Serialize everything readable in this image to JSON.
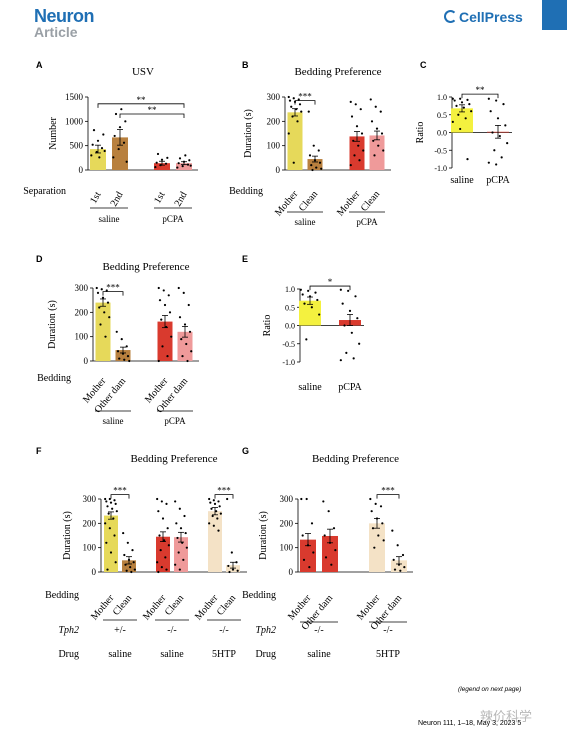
{
  "header": {
    "journal": "Neuron",
    "article_type": "Article",
    "publisher": "CellPress"
  },
  "footer": {
    "legend_note": "(legend on next page)",
    "citation": "Neuron 111, 1–18, May 3, 2023   5",
    "watermark": "辣价科学"
  },
  "colors": {
    "saline": "#e6d95a",
    "saline_dark": "#b8803e",
    "pcpa": "#d93a2e",
    "pcpa_light": "#ef9a9a",
    "htp": "#f4e2c6",
    "bright_yellow": "#f4f13f",
    "header_blue": "#1f6fb4"
  },
  "chart_data": [
    {
      "panel": "A",
      "type": "bar",
      "title": "USV",
      "ylabel": "Number",
      "ylim": [
        0,
        1500
      ],
      "yticks": [
        0,
        500,
        1000,
        1500
      ],
      "xrow_label": "Separation",
      "categories": [
        "1st",
        "2nd",
        "1st",
        "2nd"
      ],
      "groups": [
        {
          "label": "saline",
          "span": [
            0,
            1
          ]
        },
        {
          "label": "pCPA",
          "span": [
            2,
            3
          ]
        }
      ],
      "values": [
        430,
        670,
        140,
        140
      ],
      "errors": [
        80,
        160,
        40,
        30
      ],
      "colors": [
        "#e6d95a",
        "#b8803e",
        "#d93a2e",
        "#ef9a9a"
      ],
      "points": [
        [
          300,
          370,
          450,
          520,
          600,
          730,
          820,
          260,
          390
        ],
        [
          260,
          430,
          560,
          700,
          880,
          1000,
          1150,
          1250,
          170
        ],
        [
          60,
          100,
          130,
          150,
          210,
          250,
          330
        ],
        [
          50,
          80,
          110,
          140,
          170,
          200,
          240,
          300,
          90
        ]
      ],
      "sig": [
        {
          "from": 0,
          "to": 3,
          "label": "**",
          "y": 1360
        },
        {
          "from": 1,
          "to": 3,
          "label": "**",
          "y": 1150
        }
      ]
    },
    {
      "panel": "B",
      "type": "bar",
      "title": "Bedding Preference",
      "ylabel": "Duration (s)",
      "ylim": [
        0,
        300
      ],
      "yticks": [
        0,
        100,
        200,
        300
      ],
      "xrow_label": "Bedding",
      "categories": [
        "Mother",
        "Clean",
        "Mother",
        "Clean"
      ],
      "groups": [
        {
          "label": "saline",
          "span": [
            0,
            1
          ]
        },
        {
          "label": "pCPA",
          "span": [
            2,
            3
          ]
        }
      ],
      "values": [
        237,
        45,
        138,
        142
      ],
      "errors": [
        15,
        12,
        20,
        18
      ],
      "colors": [
        "#e6d95a",
        "#b8803e",
        "#d93a2e",
        "#ef9a9a"
      ],
      "points": [
        [
          300,
          295,
          290,
          285,
          280,
          270,
          260,
          250,
          240,
          220,
          200,
          150,
          30
        ],
        [
          240,
          100,
          80,
          60,
          40,
          30,
          20,
          10,
          5,
          0
        ],
        [
          280,
          270,
          250,
          220,
          180,
          150,
          120,
          100,
          80,
          60,
          40,
          20
        ],
        [
          290,
          260,
          240,
          200,
          170,
          150,
          120,
          100,
          80,
          60
        ]
      ],
      "sig": [
        {
          "from": 0,
          "to": 1,
          "label": "***",
          "y": 285
        }
      ]
    },
    {
      "panel": "C",
      "type": "bar",
      "title": "",
      "ylabel": "Ratio",
      "ylim": [
        -1,
        1
      ],
      "yticks": [
        -1.0,
        -0.5,
        0.0,
        0.5,
        1.0
      ],
      "xrow_label": "",
      "categories": [
        "saline",
        "pCPA"
      ],
      "groups": [],
      "values": [
        0.68,
        0.02
      ],
      "errors": [
        0.1,
        0.18
      ],
      "colors": [
        "#f4f13f",
        "#d93a2e"
      ],
      "points": [
        [
          0.95,
          0.95,
          0.92,
          0.9,
          0.85,
          0.8,
          0.75,
          0.7,
          0.6,
          0.5,
          0.4,
          0.3,
          0.1,
          -0.75
        ],
        [
          0.95,
          0.9,
          0.8,
          0.6,
          0.4,
          0.2,
          0.0,
          -0.1,
          -0.3,
          -0.5,
          -0.7,
          -0.85,
          -0.9
        ]
      ],
      "sig": [
        {
          "from": 0,
          "to": 1,
          "label": "**",
          "y": 1.08
        }
      ]
    },
    {
      "panel": "D",
      "type": "bar",
      "title": "Bedding Preference",
      "ylabel": "Duration (s)",
      "ylim": [
        0,
        300
      ],
      "yticks": [
        0,
        100,
        200,
        300
      ],
      "xrow_label": "Bedding",
      "categories": [
        "Mother",
        "Other dam",
        "Mother",
        "Other dam"
      ],
      "groups": [
        {
          "label": "saline",
          "span": [
            0,
            1
          ]
        },
        {
          "label": "pCPA",
          "span": [
            2,
            3
          ]
        }
      ],
      "values": [
        240,
        45,
        162,
        120
      ],
      "errors": [
        15,
        12,
        25,
        22
      ],
      "colors": [
        "#e6d95a",
        "#b8803e",
        "#d93a2e",
        "#ef9a9a"
      ],
      "points": [
        [
          300,
          295,
          290,
          280,
          260,
          240,
          220,
          200,
          180,
          150,
          100
        ],
        [
          120,
          90,
          60,
          40,
          30,
          20,
          10,
          5,
          0
        ],
        [
          300,
          290,
          270,
          250,
          230,
          200,
          170,
          140,
          100,
          60,
          20,
          0
        ],
        [
          300,
          280,
          230,
          180,
          150,
          120,
          90,
          70,
          40,
          20,
          0
        ]
      ],
      "sig": [
        {
          "from": 0,
          "to": 1,
          "label": "***",
          "y": 285
        }
      ]
    },
    {
      "panel": "E",
      "type": "bar",
      "title": "",
      "ylabel": "Ratio",
      "ylim": [
        -1,
        1
      ],
      "yticks": [
        -1.0,
        -0.5,
        0.0,
        0.5,
        1.0
      ],
      "xrow_label": "",
      "categories": [
        "saline",
        "pCPA"
      ],
      "groups": [],
      "values": [
        0.68,
        0.15
      ],
      "errors": [
        0.1,
        0.15
      ],
      "colors": [
        "#f4f13f",
        "#d93a2e"
      ],
      "points": [
        [
          0.98,
          0.95,
          0.9,
          0.85,
          0.8,
          0.7,
          0.6,
          0.5,
          0.3,
          -0.38
        ],
        [
          0.98,
          0.95,
          0.8,
          0.6,
          0.4,
          0.2,
          0.0,
          -0.2,
          -0.5,
          -0.75,
          -0.9,
          -0.95
        ]
      ],
      "sig": [
        {
          "from": 0,
          "to": 1,
          "label": "*",
          "y": 1.08
        }
      ]
    },
    {
      "panel": "F",
      "type": "bar",
      "title": "Bedding Preference",
      "ylabel": "Duration (s)",
      "ylim": [
        0,
        300
      ],
      "yticks": [
        0,
        100,
        200,
        300
      ],
      "xrow_label": "Bedding",
      "categories": [
        "Mother",
        "Clean",
        "Mother",
        "Clean",
        "Mother",
        "Clean"
      ],
      "groups": [
        {
          "label": "+/-",
          "span": [
            0,
            1
          ]
        },
        {
          "label": "-/-",
          "span": [
            2,
            3
          ]
        },
        {
          "label": "-/-",
          "span": [
            4,
            5
          ]
        }
      ],
      "extra_rows": [
        {
          "label": "Tph2",
          "values": [
            "+/-",
            "-/-",
            "-/-"
          ],
          "italic": true
        },
        {
          "label": "Drug",
          "values": [
            "saline",
            "saline",
            "5HTP"
          ]
        }
      ],
      "values": [
        232,
        48,
        145,
        143,
        250,
        28
      ],
      "errors": [
        15,
        15,
        20,
        20,
        15,
        12
      ],
      "colors": [
        "#e6d95a",
        "#b8803e",
        "#d93a2e",
        "#ef9a9a",
        "#f4e2c6",
        "#f4e2c6"
      ],
      "points": [
        [
          300,
          300,
          295,
          290,
          285,
          280,
          270,
          260,
          250,
          240,
          220,
          200,
          180,
          150,
          120,
          80,
          40,
          10
        ],
        [
          160,
          120,
          90,
          70,
          50,
          40,
          30,
          20,
          10,
          5,
          0
        ],
        [
          300,
          290,
          280,
          250,
          220,
          180,
          150,
          130,
          110,
          90,
          60,
          40,
          20,
          10,
          0
        ],
        [
          290,
          260,
          230,
          200,
          180,
          160,
          140,
          120,
          100,
          80,
          50,
          30,
          10
        ],
        [
          300,
          295,
          290,
          285,
          280,
          270,
          260,
          250,
          240,
          230,
          220,
          200,
          190,
          170
        ],
        [
          300,
          80,
          40,
          25,
          10,
          5,
          0
        ]
      ],
      "sig": [
        {
          "from": 0,
          "to": 1,
          "label": "***",
          "y": 318
        },
        {
          "from": 4,
          "to": 5,
          "label": "***",
          "y": 318
        }
      ]
    },
    {
      "panel": "G",
      "type": "bar",
      "title": "Bedding Preference",
      "ylabel": "Duration (s)",
      "ylim": [
        0,
        300
      ],
      "yticks": [
        0,
        100,
        200,
        300
      ],
      "xrow_label": "Bedding",
      "categories": [
        "Mother",
        "Other dam",
        "Mother",
        "Other dam"
      ],
      "groups": [
        {
          "label": "-/-",
          "span": [
            0,
            1
          ]
        },
        {
          "label": "-/-",
          "span": [
            2,
            3
          ]
        }
      ],
      "extra_rows": [
        {
          "label": "Tph2",
          "values": [
            "-/-",
            "-/-"
          ],
          "italic": true
        },
        {
          "label": "Drug",
          "values": [
            "saline",
            "5HTP"
          ]
        }
      ],
      "values": [
        133,
        148,
        200,
        48
      ],
      "errors": [
        25,
        28,
        20,
        15
      ],
      "colors": [
        "#d93a2e",
        "#d93a2e",
        "#f4e2c6",
        "#f4e2c6"
      ],
      "points": [
        [
          300,
          300,
          200,
          150,
          110,
          80,
          50,
          20
        ],
        [
          290,
          250,
          180,
          150,
          120,
          90,
          60,
          30
        ],
        [
          300,
          280,
          270,
          250,
          220,
          200,
          180,
          150,
          130,
          100
        ],
        [
          170,
          110,
          70,
          50,
          30,
          20,
          10,
          5
        ]
      ],
      "sig": [
        {
          "from": 2,
          "to": 3,
          "label": "***",
          "y": 318
        }
      ]
    }
  ]
}
